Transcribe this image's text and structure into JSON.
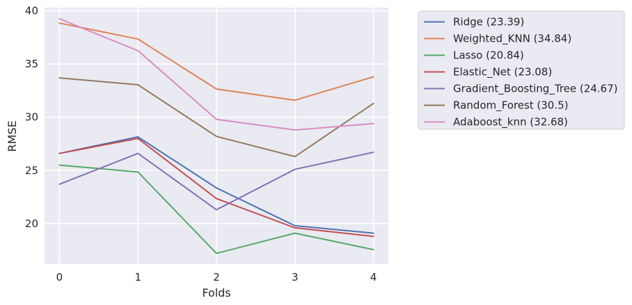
{
  "chart_data": {
    "type": "line",
    "title": "",
    "xlabel": "Folds",
    "ylabel": "RMSE",
    "x": [
      0,
      1,
      2,
      3,
      4
    ],
    "x_ticks": [
      "0",
      "1",
      "2",
      "3",
      "4"
    ],
    "y_ticks": [
      "20",
      "25",
      "30",
      "35",
      "40"
    ],
    "xlim": [
      -0.19,
      4.19
    ],
    "ylim": [
      16.2,
      40.3
    ],
    "grid": true,
    "legend_placement": "outside-right-top",
    "series": [
      {
        "name": "Ridge (23.39)",
        "color": "#4c72b0",
        "values": [
          26.6,
          28.15,
          23.35,
          19.8,
          19.1
        ]
      },
      {
        "name": "Weighted_KNN (34.84)",
        "color": "#dd8452",
        "values": [
          38.85,
          37.35,
          32.65,
          31.6,
          33.8
        ]
      },
      {
        "name": "Lasso (20.84)",
        "color": "#55a868",
        "values": [
          25.5,
          24.85,
          17.2,
          19.1,
          17.55
        ]
      },
      {
        "name": "Elastic_Net (23.08)",
        "color": "#c44e52",
        "values": [
          26.6,
          28.0,
          22.35,
          19.6,
          18.8
        ]
      },
      {
        "name": "Gradient_Boosting_Tree (24.67)",
        "color": "#8172b3",
        "values": [
          23.7,
          26.6,
          21.3,
          25.1,
          26.7
        ]
      },
      {
        "name": "Random_Forest (30.5)",
        "color": "#937860",
        "values": [
          33.7,
          33.05,
          28.2,
          26.3,
          31.3
        ]
      },
      {
        "name": "Adaboost_knn (32.68)",
        "color": "#da8bc3",
        "values": [
          39.25,
          36.25,
          29.8,
          28.8,
          29.4
        ]
      }
    ]
  }
}
